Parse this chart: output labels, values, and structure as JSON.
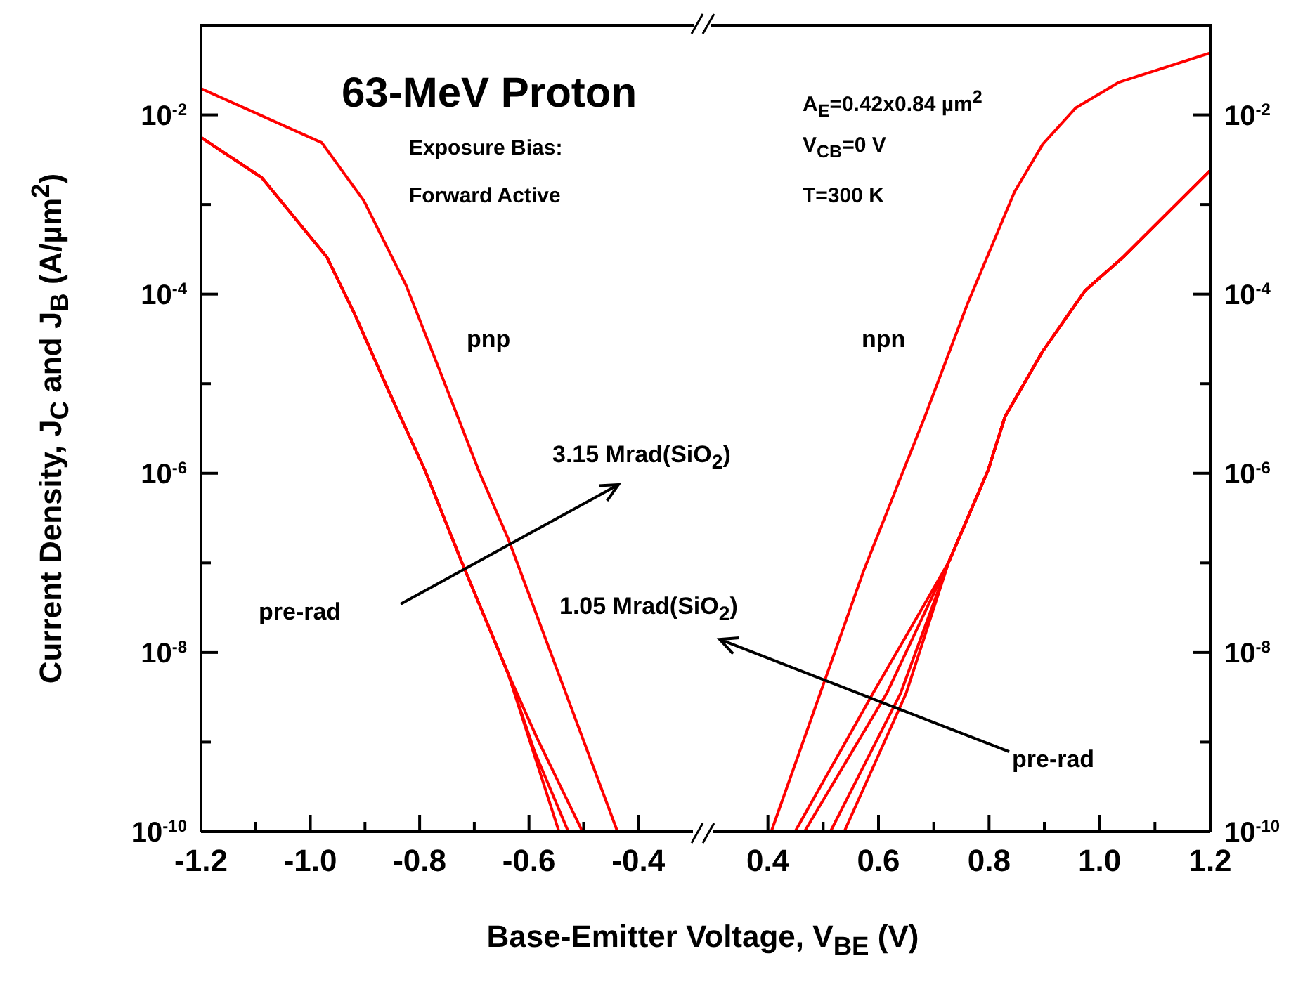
{
  "chart_data": [
    {
      "type": "line",
      "title": "63-MeV Proton",
      "xlabel": "Base-Emitter Voltage, V$_{BE}$ (V)",
      "ylabel": "Current Density, J$_{C}$ and J$_{B}$ (A/µm$^{2}$)",
      "log": "y",
      "annotations": [
        "Exposure Bias:",
        "Forward Active",
        "pnp",
        "3.15 Mrad(SiO$_{2}$)",
        "pre-rad"
      ],
      "xlim": [
        -1.2,
        -0.3
      ],
      "xticks": [
        -1.2,
        {
          "value": -1.1,
          "label": null
        },
        {
          "value": -1,
          "label": "-1.0"
        },
        {
          "value": -0.9,
          "label": null
        },
        -0.8,
        {
          "value": -0.7,
          "label": null
        },
        -0.6,
        {
          "value": -0.5,
          "label": null
        },
        -0.4
      ],
      "ylim": [
        1e-10,
        0.1
      ],
      "yticks": [
        {
          "value": 1e-10,
          "label": "10$^{-10}$"
        },
        {
          "value": 1e-09,
          "label": null
        },
        {
          "value": 1e-08,
          "label": "10$^{-8}$"
        },
        {
          "value": 1e-07,
          "label": null
        },
        {
          "value": 1e-06,
          "label": "10$^{-6}$"
        },
        {
          "value": 1e-05,
          "label": null
        },
        {
          "value": 0.0001,
          "label": "10$^{-4}$"
        },
        {
          "value": 0.001,
          "label": null
        },
        {
          "value": 0.01,
          "label": "10$^{-2}$"
        }
      ],
      "series": [
        {
          "color": "#ff0000",
          "x": [
            -1.2,
            -0.979,
            -0.902,
            -0.825,
            -0.757,
            -0.69,
            -0.638,
            -0.536,
            -0.438
          ],
          "values": [
            0.0197,
            0.0049,
            0.0011,
            0.000126,
            1.12e-05,
            1e-06,
            1.86e-07,
            4e-09,
            1e-10
          ]
        },
        {
          "color": "#ff0000",
          "x": [
            -1.2,
            -1.089,
            -0.97,
            -0.919,
            -0.859,
            -0.79,
            -0.723,
            -0.638,
            -0.545
          ],
          "values": [
            0.0056,
            0.002,
            0.00026,
            6e-05,
            8.9e-06,
            1.07e-06,
            1.02e-07,
            5.8e-09,
            1e-10
          ]
        },
        {
          "color": "#ff0000",
          "x": [
            -1.2,
            -1.089,
            -0.97,
            -0.919,
            -0.859,
            -0.79,
            -0.723,
            -0.638,
            -0.59,
            -0.528
          ],
          "values": [
            0.0056,
            0.002,
            0.00026,
            6e-05,
            8.9e-06,
            1.07e-06,
            1.02e-07,
            5.8e-09,
            7.9e-10,
            1e-10
          ]
        },
        {
          "color": "#ff0000",
          "x": [
            -1.2,
            -1.089,
            -0.97,
            -0.919,
            -0.859,
            -0.79,
            -0.723,
            -0.638,
            -0.585,
            -0.502
          ],
          "values": [
            0.0056,
            0.002,
            0.00026,
            6e-05,
            8.9e-06,
            1.07e-06,
            1.02e-07,
            5.8e-09,
            1.1e-09,
            1e-10
          ]
        }
      ]
    },
    {
      "type": "line",
      "log": "y",
      "annotations": [
        "A$_{E}$=0.42x0.84 µm$^{2}$",
        "V$_{CB}$=0 V",
        "T=300 K",
        "npn",
        "1.05 Mrad(SiO$_{2}$)",
        "pre-rad"
      ],
      "xlim": [
        0.3,
        1.2
      ],
      "xticks": [
        0.4,
        {
          "value": 0.5,
          "label": null
        },
        0.6,
        {
          "value": 0.7,
          "label": null
        },
        0.8,
        {
          "value": 0.9,
          "label": null
        },
        {
          "value": 1,
          "label": "1.0"
        },
        {
          "value": 1.1,
          "label": null
        },
        1.2
      ],
      "ylim": [
        1e-10,
        0.1
      ],
      "yticks": [
        {
          "value": 1e-10,
          "label": "10$^{-10}$"
        },
        {
          "value": 1e-09,
          "label": null
        },
        {
          "value": 1e-08,
          "label": "10$^{-8}$"
        },
        {
          "value": 1e-07,
          "label": null
        },
        {
          "value": 1e-06,
          "label": "10$^{-6}$"
        },
        {
          "value": 1e-05,
          "label": null
        },
        {
          "value": 0.0001,
          "label": "10$^{-4}$"
        },
        {
          "value": 0.001,
          "label": null
        },
        {
          "value": 0.01,
          "label": "10$^{-2}$"
        }
      ],
      "series": [
        {
          "color": "#ff0000",
          "x": [
            0.406,
            0.504,
            0.573,
            0.645,
            0.684,
            0.761,
            0.846,
            0.897,
            0.957,
            1.034,
            1.2
          ],
          "values": [
            1e-10,
            5.1e-09,
            8.1e-08,
            1.07e-06,
            4.3e-06,
            7.8e-05,
            0.00138,
            0.0047,
            0.012,
            0.023,
            0.049
          ]
        },
        {
          "color": "#ff0000",
          "x": [
            0.449,
            0.59,
            0.67,
            0.727,
            0.798,
            0.829,
            0.897,
            0.974,
            1.043,
            1.2
          ],
          "values": [
            1e-10,
            3.5e-09,
            2.5e-08,
            1.02e-07,
            1.07e-06,
            4.3e-06,
            2.3e-05,
            0.00011,
            0.00026,
            0.0024
          ]
        },
        {
          "color": "#ff0000",
          "x": [
            0.466,
            0.615,
            0.68,
            0.727,
            0.798,
            0.829,
            0.897,
            0.974,
            1.043,
            1.2
          ],
          "values": [
            1e-10,
            3.5e-09,
            2.5e-08,
            1.02e-07,
            1.07e-06,
            4.3e-06,
            2.3e-05,
            0.00011,
            0.00026,
            0.0024
          ]
        },
        {
          "color": "#ff0000",
          "x": [
            0.513,
            0.64,
            0.727,
            0.798,
            0.829,
            0.897,
            0.974,
            1.043,
            1.2
          ],
          "values": [
            1e-10,
            3.5e-09,
            1.02e-07,
            1.07e-06,
            4.3e-06,
            2.3e-05,
            0.00011,
            0.00026,
            0.0024
          ]
        },
        {
          "color": "#ff0000",
          "x": [
            0.538,
            0.65,
            0.727,
            0.798,
            0.829,
            0.897,
            0.974,
            1.043,
            1.2
          ],
          "values": [
            1e-10,
            3.5e-09,
            1.02e-07,
            1.07e-06,
            4.3e-06,
            2.3e-05,
            0.00011,
            0.00026,
            0.0024
          ]
        }
      ]
    }
  ]
}
